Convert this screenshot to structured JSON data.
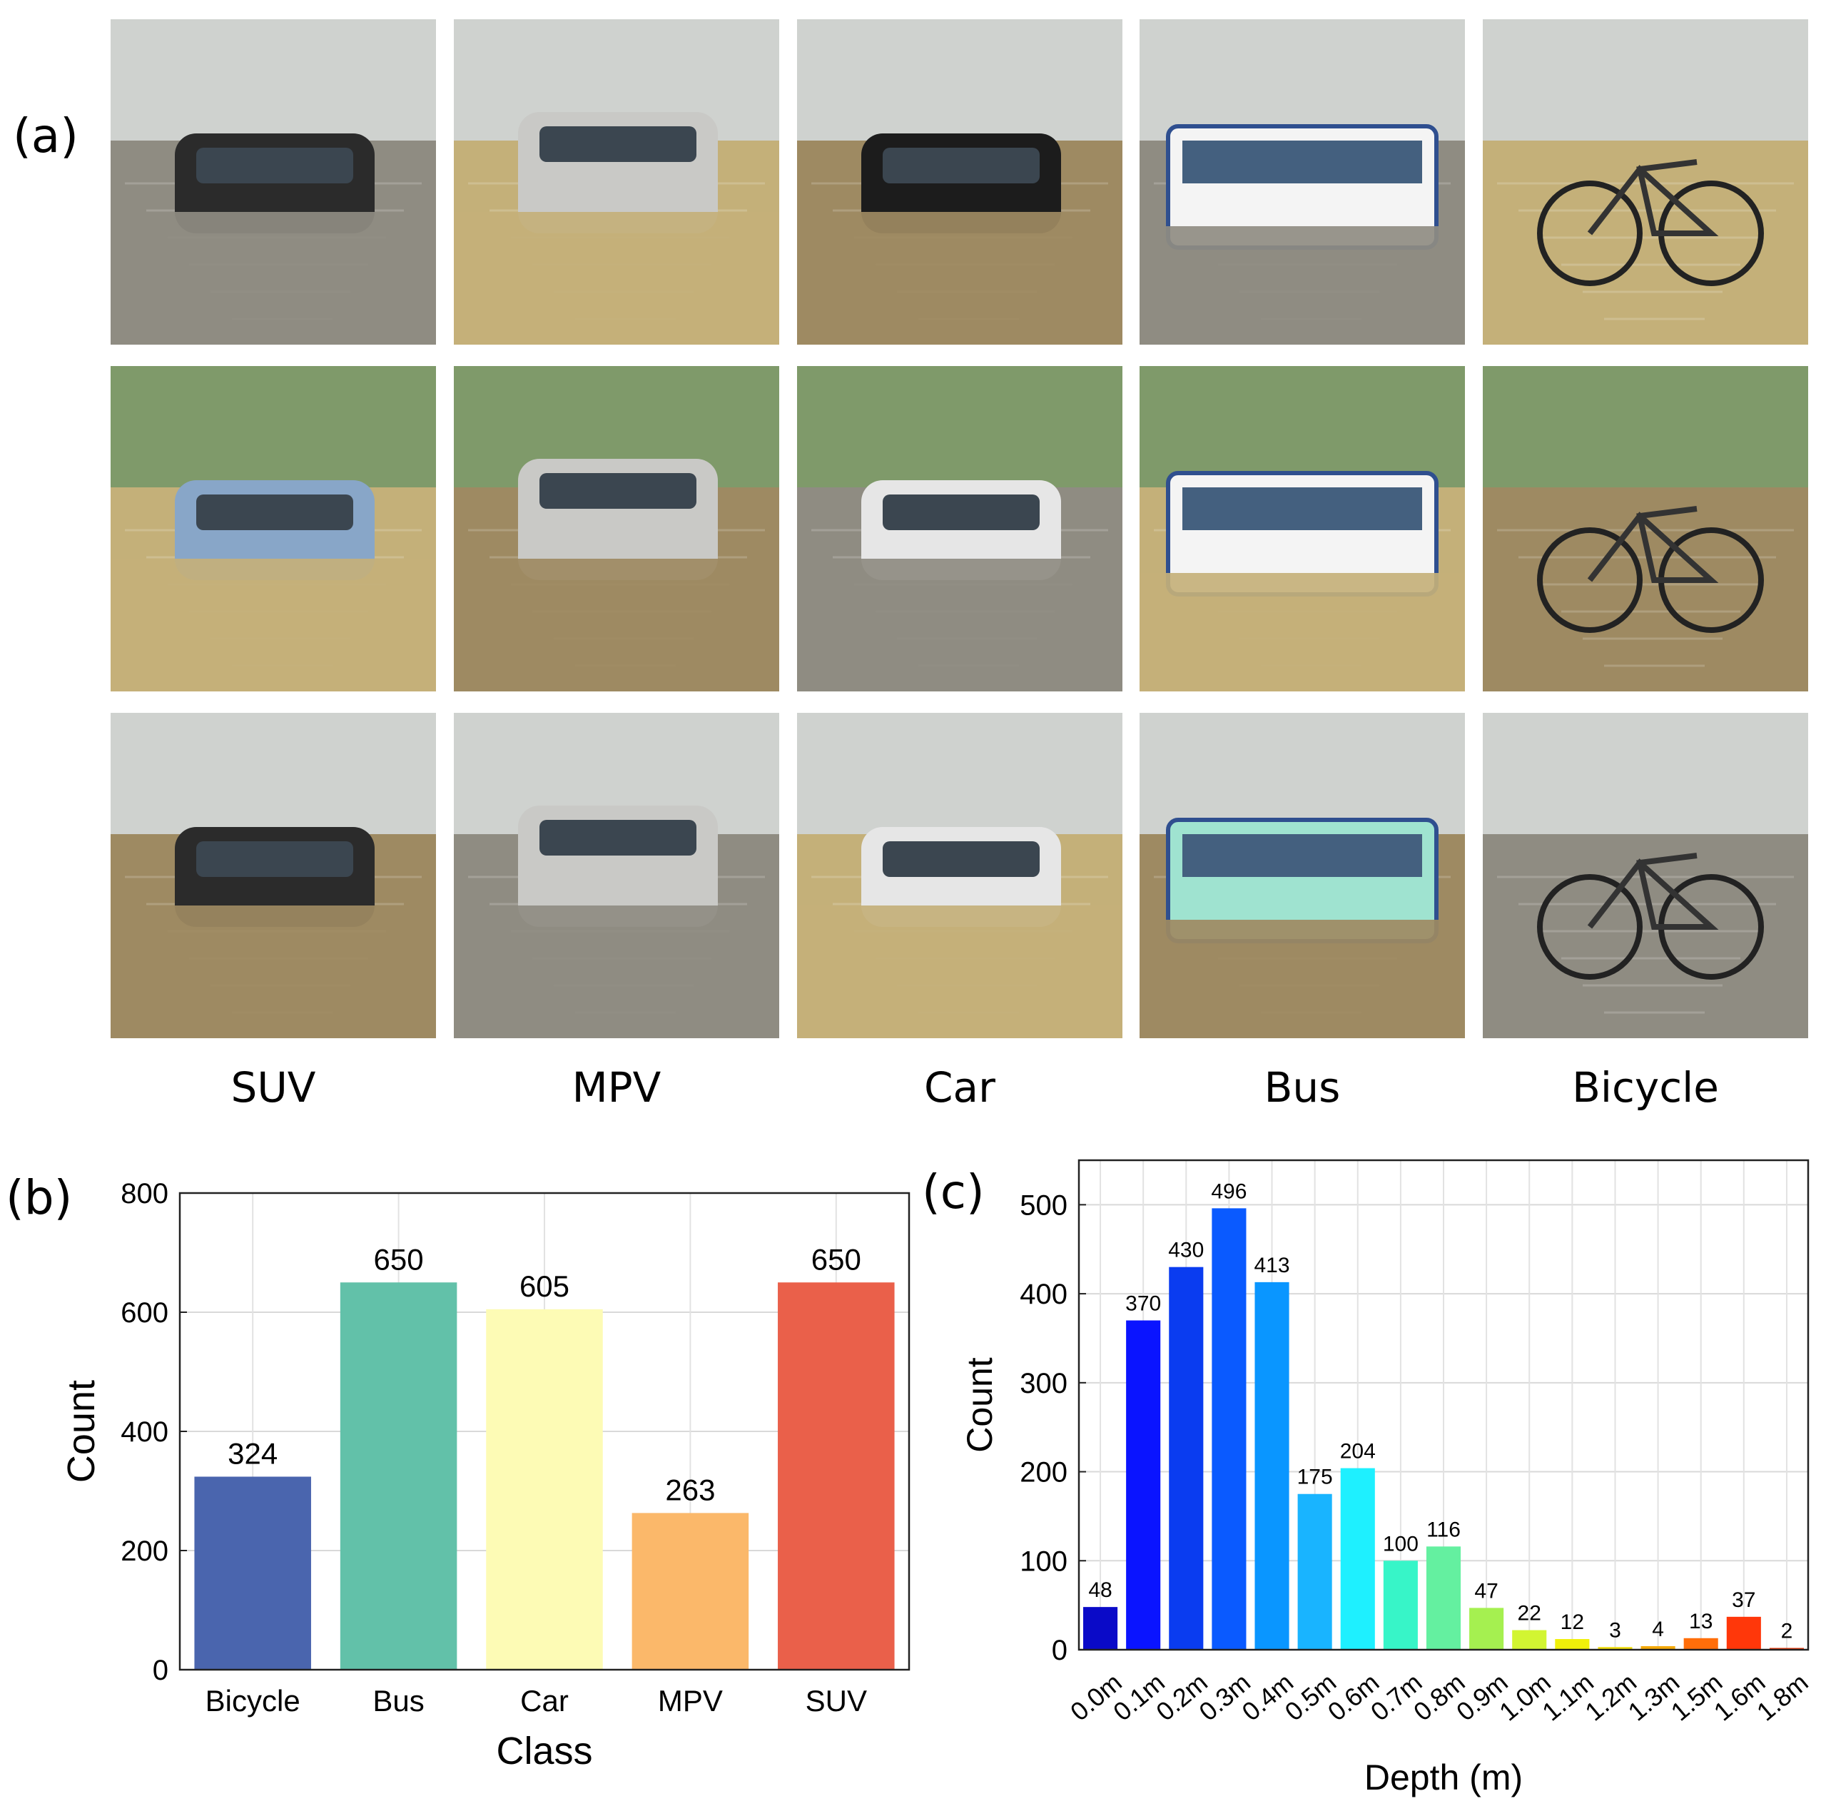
{
  "panels": {
    "a": "(a)",
    "b": "(b)",
    "c": "(c)"
  },
  "photo_panel": {
    "column_labels": [
      "SUV",
      "MPV",
      "Car",
      "Bus",
      "Bicycle"
    ],
    "rows": 3,
    "water_colors": [
      "#8f8c82",
      "#c4b079",
      "#9e8a62"
    ]
  },
  "chart_data": [
    {
      "type": "bar",
      "categories": [
        "Bicycle",
        "Bus",
        "Car",
        "MPV",
        "SUV"
      ],
      "values": [
        324,
        650,
        605,
        263,
        650
      ],
      "data_labels": [
        "324",
        "650",
        "605",
        "263",
        "650"
      ],
      "colors": [
        "#4a65ae",
        "#62c1a9",
        "#fdfbb5",
        "#fbb86a",
        "#ea604a"
      ],
      "xlabel": "Class",
      "ylabel": "Count",
      "ylim": [
        0,
        800
      ],
      "yticks": [
        0,
        200,
        400,
        600,
        800
      ],
      "ytick_labels": [
        "0",
        "200",
        "400",
        "600",
        "800"
      ],
      "grid": true
    },
    {
      "type": "bar",
      "categories": [
        "0.0m",
        "0.1m",
        "0.2m",
        "0.3m",
        "0.4m",
        "0.5m",
        "0.6m",
        "0.7m",
        "0.8m",
        "0.9m",
        "1.0m",
        "1.1m",
        "1.2m",
        "1.3m",
        "1.5m",
        "1.6m",
        "1.8m"
      ],
      "values": [
        48,
        370,
        430,
        496,
        413,
        175,
        204,
        100,
        116,
        47,
        22,
        12,
        3,
        4,
        13,
        37,
        2
      ],
      "data_labels": [
        "48",
        "370",
        "430",
        "496",
        "413",
        "175",
        "204",
        "100",
        "116",
        "47",
        "22",
        "12",
        "3",
        "4",
        "13",
        "37",
        "2"
      ],
      "colors": [
        "#0a0ac8",
        "#0a14ff",
        "#0a3cf0",
        "#0a5aff",
        "#0a96ff",
        "#19b4ff",
        "#1ef0ff",
        "#37f5c8",
        "#64f0a0",
        "#a5f050",
        "#d2f532",
        "#f0f00a",
        "#f0dc0a",
        "#f5aa0a",
        "#ff6e0a",
        "#ff370a",
        "#e6370a"
      ],
      "xlabel": "Depth (m)",
      "ylabel": "Count",
      "ylim": [
        0,
        550
      ],
      "yticks": [
        0,
        100,
        200,
        300,
        400,
        500
      ],
      "ytick_labels": [
        "0",
        "100",
        "200",
        "300",
        "400",
        "500"
      ],
      "grid": true
    }
  ]
}
